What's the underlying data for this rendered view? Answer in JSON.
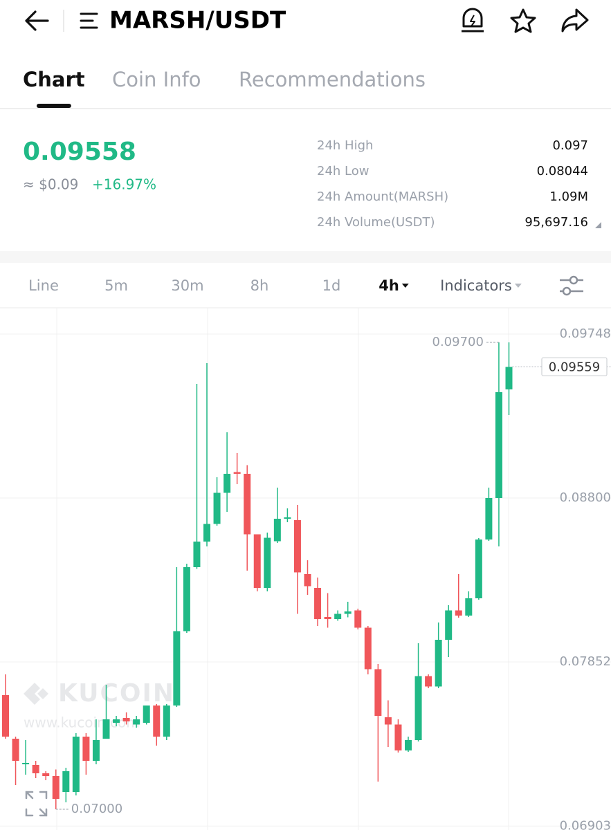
{
  "header": {
    "title": "MARSH/USDT"
  },
  "tabs": [
    "Chart",
    "Coin Info",
    "Recommendations"
  ],
  "active_tab": "Chart",
  "ticker": {
    "price": "0.09558",
    "fiat": "≈ $0.09",
    "change": "+16.97%"
  },
  "stats": [
    {
      "label": "24h High",
      "value": "0.097"
    },
    {
      "label": "24h Low",
      "value": "0.08044"
    },
    {
      "label": "24h Amount(MARSH)",
      "value": "1.09M"
    },
    {
      "label": "24h Volume(USDT)",
      "value": "95,697.16"
    }
  ],
  "timeframes": [
    "Line",
    "5m",
    "30m",
    "8h",
    "1d",
    "4h",
    "Indicators"
  ],
  "selected_timeframe": "4h",
  "watermark": {
    "brand": "KUCOIN",
    "url": "www.kucoin.com"
  },
  "chart_data": {
    "type": "candlestick",
    "up_color": "#20b986",
    "down_color": "#f0565a",
    "ylim": [
      0.0688,
      0.099
    ],
    "yticks": [
      0.09748,
      {
        "value": 0.088,
        "label": "0.08800"
      },
      0.07852,
      0.06903
    ],
    "grid": true,
    "high_label": {
      "value": 0.097,
      "label": "0.09700"
    },
    "low_label": {
      "value": 0.07,
      "label": "0.07000"
    },
    "last_label": {
      "value": 0.09559,
      "label": "0.09559"
    },
    "open": [
      0.0766,
      0.07408,
      0.0726,
      0.07256,
      0.07208,
      0.07192,
      0.071,
      0.071,
      0.0742,
      0.0728,
      0.07408,
      0.075,
      0.07528,
      0.0749,
      0.075,
      0.076,
      0.0742,
      0.076,
      0.0803,
      0.084,
      0.08548,
      0.0865,
      0.0883,
      0.0895,
      0.0894,
      0.0859,
      0.0828,
      0.0855,
      0.0868,
      0.08672,
      0.0836,
      0.0828,
      0.08112,
      0.081,
      0.0813,
      0.0815,
      0.0805,
      0.0781,
      0.07532,
      0.0749,
      0.0734,
      0.074,
      0.0777,
      0.0771,
      0.0798,
      0.0815,
      0.0812,
      0.0822,
      0.0856,
      0.088,
      0.09428
    ],
    "high": [
      0.0778,
      0.0742,
      0.074,
      0.0728,
      0.0722,
      0.0723,
      0.0724,
      0.0744,
      0.0744,
      0.0752,
      0.0772,
      0.0754,
      0.0756,
      0.0754,
      0.076,
      0.07608,
      0.07608,
      0.084,
      0.0842,
      0.0946,
      0.0958,
      0.0892,
      0.0918,
      0.0906,
      0.0899,
      0.0859,
      0.086,
      0.0886,
      0.0874,
      0.0876,
      0.0844,
      0.0834,
      0.0825,
      0.0815,
      0.082,
      0.0816,
      0.0806,
      0.0784,
      0.0763,
      0.0752,
      0.0742,
      0.0796,
      0.0778,
      0.0808,
      0.0818,
      0.0836,
      0.0826,
      0.08568,
      0.0886,
      0.097,
      0.097
    ],
    "low": [
      0.07408,
      0.0714,
      0.072,
      0.0718,
      0.07168,
      0.07,
      0.0704,
      0.0708,
      0.072,
      0.0726,
      0.07408,
      0.0748,
      0.0749,
      0.07472,
      0.0749,
      0.07368,
      0.074,
      0.07592,
      0.0802,
      0.0839,
      0.0852,
      0.0864,
      0.0872,
      0.0888,
      0.0838,
      0.0826,
      0.0826,
      0.0854,
      0.0866,
      0.0813,
      0.0824,
      0.0806,
      0.0805,
      0.0809,
      0.0811,
      0.0804,
      0.0778,
      0.0716,
      0.0736,
      0.07328,
      0.07332,
      0.07392,
      0.077,
      0.077,
      0.0788,
      0.08108,
      0.08112,
      0.08212,
      0.08552,
      0.0852,
      0.0928
    ],
    "close": [
      0.0742,
      0.0728,
      0.07268,
      0.07208,
      0.07192,
      0.0706,
      0.0722,
      0.0742,
      0.0728,
      0.074,
      0.0752,
      0.0752,
      0.07508,
      0.0752,
      0.076,
      0.0742,
      0.076,
      0.0803,
      0.084,
      0.08548,
      0.0865,
      0.0883,
      0.0894,
      0.0894,
      0.0859,
      0.0828,
      0.0857,
      0.0868,
      0.08688,
      0.0837,
      0.0829,
      0.081,
      0.081,
      0.0813,
      0.08144,
      0.0805,
      0.0781,
      0.0754,
      0.0749,
      0.0734,
      0.074,
      0.0777,
      0.0771,
      0.0798,
      0.0815,
      0.0812,
      0.0822,
      0.0856,
      0.088,
      0.09412,
      0.09558
    ]
  }
}
